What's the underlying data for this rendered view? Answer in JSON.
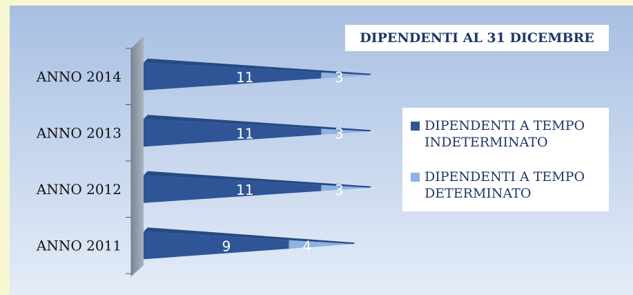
{
  "chart_data": {
    "type": "bar",
    "orientation": "horizontal",
    "title": "DIPENDENTI AL 31 DICEMBRE",
    "categories": [
      "ANNO 2014",
      "ANNO 2013",
      "ANNO 2012",
      "ANNO 2011"
    ],
    "series": [
      {
        "name": "DIPENDENTI A TEMPO INDETERMINATO",
        "values": [
          11,
          11,
          11,
          9
        ],
        "color": "#2f5597"
      },
      {
        "name": "DIPENDENTI A TEMPO DETERMINATO",
        "values": [
          3,
          3,
          3,
          4
        ],
        "color": "#8db3e2"
      }
    ],
    "stacked": true,
    "xlim": [
      0,
      15
    ],
    "legend_position": "right",
    "grid": false
  }
}
